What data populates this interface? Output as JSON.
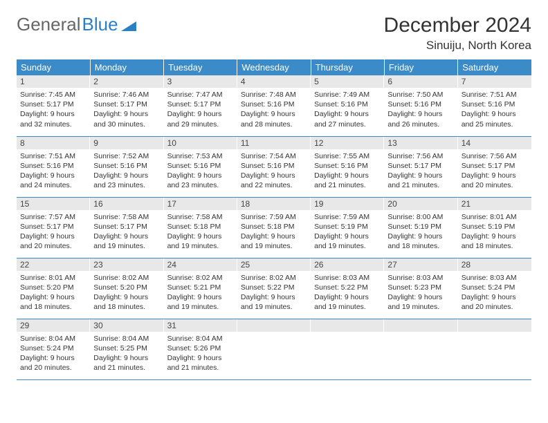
{
  "brand": {
    "part1": "General",
    "part2": "Blue"
  },
  "title": "December 2024",
  "location": "Sinuiju, North Korea",
  "header_bg": "#3b8bc9",
  "daynum_bg": "#e8e8e8",
  "weekdays": [
    "Sunday",
    "Monday",
    "Tuesday",
    "Wednesday",
    "Thursday",
    "Friday",
    "Saturday"
  ],
  "days": [
    {
      "n": 1,
      "sr": "7:45 AM",
      "ss": "5:17 PM",
      "dl": "9 hours and 32 minutes."
    },
    {
      "n": 2,
      "sr": "7:46 AM",
      "ss": "5:17 PM",
      "dl": "9 hours and 30 minutes."
    },
    {
      "n": 3,
      "sr": "7:47 AM",
      "ss": "5:17 PM",
      "dl": "9 hours and 29 minutes."
    },
    {
      "n": 4,
      "sr": "7:48 AM",
      "ss": "5:16 PM",
      "dl": "9 hours and 28 minutes."
    },
    {
      "n": 5,
      "sr": "7:49 AM",
      "ss": "5:16 PM",
      "dl": "9 hours and 27 minutes."
    },
    {
      "n": 6,
      "sr": "7:50 AM",
      "ss": "5:16 PM",
      "dl": "9 hours and 26 minutes."
    },
    {
      "n": 7,
      "sr": "7:51 AM",
      "ss": "5:16 PM",
      "dl": "9 hours and 25 minutes."
    },
    {
      "n": 8,
      "sr": "7:51 AM",
      "ss": "5:16 PM",
      "dl": "9 hours and 24 minutes."
    },
    {
      "n": 9,
      "sr": "7:52 AM",
      "ss": "5:16 PM",
      "dl": "9 hours and 23 minutes."
    },
    {
      "n": 10,
      "sr": "7:53 AM",
      "ss": "5:16 PM",
      "dl": "9 hours and 23 minutes."
    },
    {
      "n": 11,
      "sr": "7:54 AM",
      "ss": "5:16 PM",
      "dl": "9 hours and 22 minutes."
    },
    {
      "n": 12,
      "sr": "7:55 AM",
      "ss": "5:16 PM",
      "dl": "9 hours and 21 minutes."
    },
    {
      "n": 13,
      "sr": "7:56 AM",
      "ss": "5:17 PM",
      "dl": "9 hours and 21 minutes."
    },
    {
      "n": 14,
      "sr": "7:56 AM",
      "ss": "5:17 PM",
      "dl": "9 hours and 20 minutes."
    },
    {
      "n": 15,
      "sr": "7:57 AM",
      "ss": "5:17 PM",
      "dl": "9 hours and 20 minutes."
    },
    {
      "n": 16,
      "sr": "7:58 AM",
      "ss": "5:17 PM",
      "dl": "9 hours and 19 minutes."
    },
    {
      "n": 17,
      "sr": "7:58 AM",
      "ss": "5:18 PM",
      "dl": "9 hours and 19 minutes."
    },
    {
      "n": 18,
      "sr": "7:59 AM",
      "ss": "5:18 PM",
      "dl": "9 hours and 19 minutes."
    },
    {
      "n": 19,
      "sr": "7:59 AM",
      "ss": "5:19 PM",
      "dl": "9 hours and 19 minutes."
    },
    {
      "n": 20,
      "sr": "8:00 AM",
      "ss": "5:19 PM",
      "dl": "9 hours and 18 minutes."
    },
    {
      "n": 21,
      "sr": "8:01 AM",
      "ss": "5:19 PM",
      "dl": "9 hours and 18 minutes."
    },
    {
      "n": 22,
      "sr": "8:01 AM",
      "ss": "5:20 PM",
      "dl": "9 hours and 18 minutes."
    },
    {
      "n": 23,
      "sr": "8:02 AM",
      "ss": "5:20 PM",
      "dl": "9 hours and 18 minutes."
    },
    {
      "n": 24,
      "sr": "8:02 AM",
      "ss": "5:21 PM",
      "dl": "9 hours and 19 minutes."
    },
    {
      "n": 25,
      "sr": "8:02 AM",
      "ss": "5:22 PM",
      "dl": "9 hours and 19 minutes."
    },
    {
      "n": 26,
      "sr": "8:03 AM",
      "ss": "5:22 PM",
      "dl": "9 hours and 19 minutes."
    },
    {
      "n": 27,
      "sr": "8:03 AM",
      "ss": "5:23 PM",
      "dl": "9 hours and 19 minutes."
    },
    {
      "n": 28,
      "sr": "8:03 AM",
      "ss": "5:24 PM",
      "dl": "9 hours and 20 minutes."
    },
    {
      "n": 29,
      "sr": "8:04 AM",
      "ss": "5:24 PM",
      "dl": "9 hours and 20 minutes."
    },
    {
      "n": 30,
      "sr": "8:04 AM",
      "ss": "5:25 PM",
      "dl": "9 hours and 21 minutes."
    },
    {
      "n": 31,
      "sr": "8:04 AM",
      "ss": "5:26 PM",
      "dl": "9 hours and 21 minutes."
    }
  ],
  "labels": {
    "sunrise": "Sunrise:",
    "sunset": "Sunset:",
    "daylight": "Daylight:"
  },
  "first_weekday_index": 0,
  "trailing_empty": 4
}
